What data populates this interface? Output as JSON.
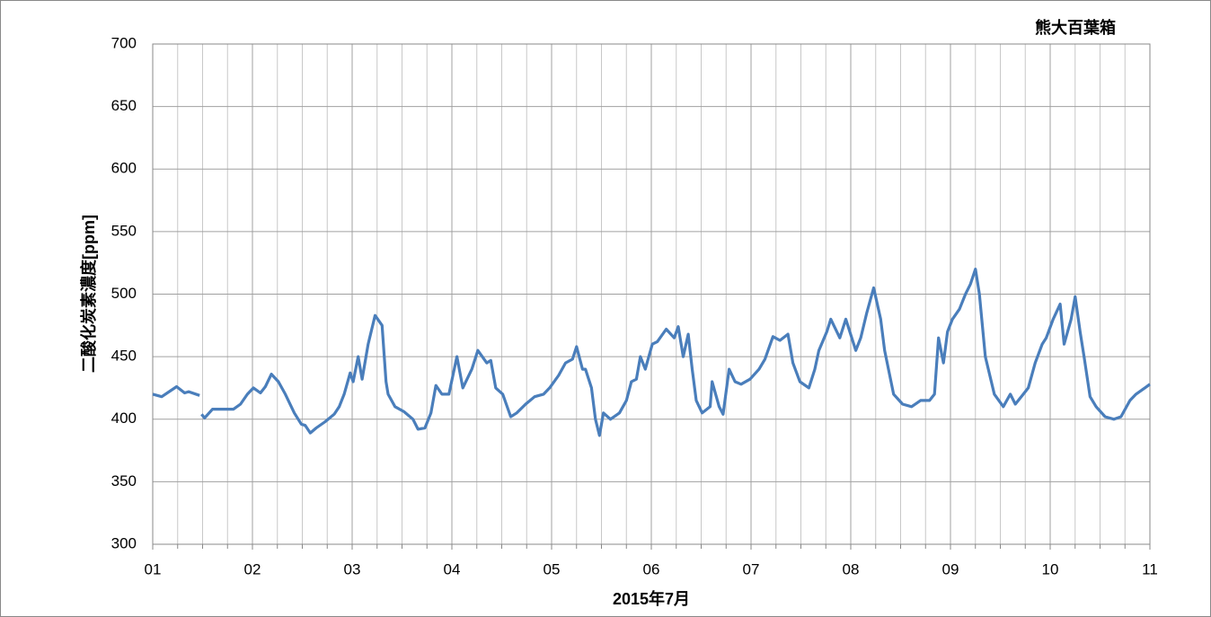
{
  "chart_data": {
    "type": "line",
    "title": "熊大百葉箱",
    "xlabel": "2015年7月",
    "ylabel": "二酸化炭素濃度[ppm]",
    "xlim": [
      1,
      11
    ],
    "xticks": [
      {
        "value": 1,
        "label": "01"
      },
      {
        "value": 2,
        "label": "02"
      },
      {
        "value": 3,
        "label": "03"
      },
      {
        "value": 4,
        "label": "04"
      },
      {
        "value": 5,
        "label": "05"
      },
      {
        "value": 6,
        "label": "06"
      },
      {
        "value": 7,
        "label": "07"
      },
      {
        "value": 8,
        "label": "08"
      },
      {
        "value": 9,
        "label": "09"
      },
      10,
      11
    ],
    "ylim": [
      300,
      700
    ],
    "yticks": [
      300,
      350,
      400,
      450,
      500,
      550,
      600,
      650,
      700
    ],
    "grid": true,
    "series": [
      {
        "color": "#4a7ebb",
        "x": [
          1.0,
          1.09,
          1.24,
          1.32,
          1.36,
          1.47,
          1.48,
          1.49,
          1.52,
          1.6,
          1.72,
          1.81,
          1.88,
          1.95,
          2.01,
          2.08,
          2.13,
          2.19,
          2.26,
          2.33,
          2.42,
          2.49,
          2.53,
          2.58,
          2.64,
          2.73,
          2.82,
          2.87,
          2.92,
          2.98,
          3.01,
          3.06,
          3.1,
          3.16,
          3.23,
          3.3,
          3.34,
          3.36,
          3.43,
          3.52,
          3.61,
          3.66,
          3.73,
          3.79,
          3.84,
          3.9,
          3.97,
          4.05,
          4.11,
          4.2,
          4.26,
          4.35,
          4.39,
          4.44,
          4.51,
          4.59,
          4.65,
          4.74,
          4.83,
          4.92,
          4.98,
          5.07,
          5.14,
          5.21,
          5.25,
          5.31,
          5.34,
          5.4,
          5.44,
          5.48,
          5.52,
          5.59,
          5.68,
          5.75,
          5.8,
          5.85,
          5.89,
          5.94,
          6.01,
          6.06,
          6.15,
          6.23,
          6.27,
          6.32,
          6.37,
          6.41,
          6.45,
          6.51,
          6.59,
          6.61,
          6.68,
          6.72,
          6.78,
          6.84,
          6.9,
          6.99,
          7.08,
          7.14,
          7.22,
          7.29,
          7.37,
          7.42,
          7.49,
          7.58,
          7.64,
          7.68,
          7.76,
          7.8,
          7.89,
          7.95,
          8.05,
          8.1,
          8.16,
          8.23,
          8.3,
          8.34,
          8.43,
          8.52,
          8.61,
          8.7,
          8.79,
          8.84,
          8.88,
          8.93,
          8.97,
          9.02,
          9.09,
          9.15,
          9.2,
          9.25,
          9.29,
          9.35,
          9.44,
          9.53,
          9.6,
          9.65,
          9.71,
          9.78,
          9.85,
          9.92,
          9.96,
          10.03,
          10.1,
          10.14,
          10.21,
          10.25,
          10.3,
          10.34,
          10.4,
          10.46,
          10.55,
          10.64,
          10.71,
          10.8,
          10.86,
          10.95,
          11.0
        ],
        "values": [
          420,
          418,
          426,
          421,
          422,
          419,
          null,
          404,
          401,
          408,
          408,
          408,
          412,
          420,
          425,
          421,
          426,
          436,
          430,
          420,
          405,
          396,
          395,
          389,
          393,
          398,
          404,
          410,
          420,
          437,
          430,
          450,
          432,
          460,
          483,
          475,
          430,
          420,
          410,
          406,
          400,
          392,
          393,
          405,
          427,
          420,
          420,
          450,
          425,
          440,
          455,
          445,
          447,
          425,
          420,
          402,
          405,
          412,
          418,
          420,
          425,
          435,
          445,
          448,
          458,
          440,
          440,
          425,
          400,
          387,
          405,
          400,
          405,
          415,
          430,
          432,
          450,
          440,
          460,
          462,
          472,
          465,
          474,
          450,
          468,
          440,
          415,
          405,
          410,
          430,
          410,
          404,
          440,
          430,
          428,
          432,
          440,
          448,
          466,
          463,
          468,
          445,
          430,
          425,
          440,
          455,
          470,
          480,
          465,
          480,
          455,
          465,
          485,
          505,
          480,
          455,
          420,
          412,
          410,
          415,
          415,
          420,
          465,
          445,
          470,
          480,
          488,
          500,
          508,
          520,
          500,
          450,
          420,
          410,
          420,
          412,
          418,
          425,
          445,
          460,
          465,
          480,
          492,
          460,
          480,
          498,
          470,
          450,
          418,
          410,
          402,
          400,
          402,
          415,
          420,
          425,
          428
        ]
      }
    ]
  }
}
